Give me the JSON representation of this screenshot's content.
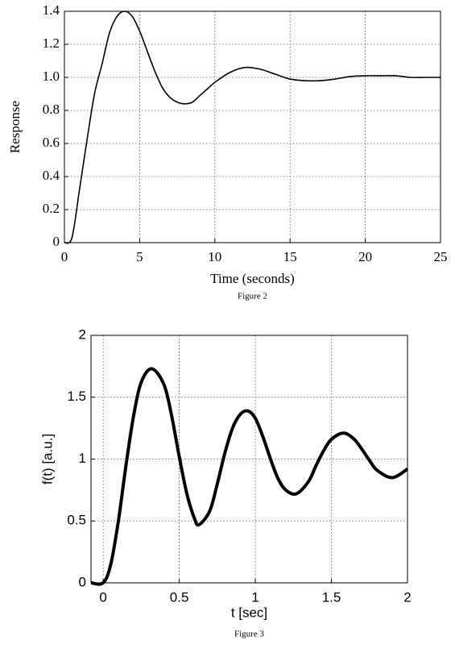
{
  "chart_data": [
    {
      "type": "line",
      "xlabel": "Time (seconds)",
      "ylabel": "Response",
      "caption": "Figure 2",
      "x": [
        0,
        0.5,
        1,
        1.5,
        2,
        2.5,
        3,
        3.5,
        4,
        4.5,
        5,
        5.5,
        6,
        6.5,
        7,
        7.5,
        8,
        8.5,
        9,
        9.5,
        10,
        11,
        12,
        13,
        14,
        15,
        16,
        17,
        18,
        19,
        20,
        21,
        22,
        23,
        24,
        25
      ],
      "series": [
        {
          "color": "#000000",
          "values": [
            0,
            0.03,
            0.32,
            0.62,
            0.9,
            1.08,
            1.27,
            1.37,
            1.4,
            1.37,
            1.28,
            1.16,
            1.04,
            0.94,
            0.88,
            0.85,
            0.84,
            0.85,
            0.89,
            0.93,
            0.97,
            1.03,
            1.06,
            1.05,
            1.02,
            0.99,
            0.98,
            0.98,
            0.99,
            1.005,
            1.01,
            1.01,
            1.01,
            1.0,
            1.0,
            1.0
          ]
        }
      ],
      "xlim": [
        0,
        25
      ],
      "ylim": [
        0,
        1.4
      ],
      "xticks": [
        0,
        5,
        10,
        15,
        20,
        25
      ],
      "yticks": [
        0,
        {
          "value": 0.2,
          "label": "0.2"
        },
        {
          "value": 0.4,
          "label": "0.4"
        },
        {
          "value": 0.6,
          "label": "0.6"
        },
        {
          "value": 0.8,
          "label": "0.8"
        },
        {
          "value": 1.0,
          "label": "1.0"
        },
        {
          "value": 1.2,
          "label": "1.2"
        },
        {
          "value": 1.4,
          "label": "1.4"
        }
      ],
      "grid": true
    },
    {
      "type": "line",
      "xlabel": "t [sec]",
      "ylabel": "f(t) [a.u.]",
      "caption": "Figure 3",
      "x": [
        -0.08,
        0,
        0.05,
        0.1,
        0.15,
        0.2,
        0.25,
        0.32,
        0.4,
        0.45,
        0.5,
        0.55,
        0.6,
        0.63,
        0.7,
        0.75,
        0.8,
        0.85,
        0.9,
        0.95,
        1.0,
        1.05,
        1.1,
        1.15,
        1.2,
        1.27,
        1.35,
        1.4,
        1.45,
        1.5,
        1.58,
        1.65,
        1.7,
        1.75,
        1.8,
        1.9,
        2.0
      ],
      "series": [
        {
          "color": "#000000",
          "values": [
            0,
            0,
            0.15,
            0.5,
            0.95,
            1.35,
            1.62,
            1.73,
            1.6,
            1.35,
            1.02,
            0.72,
            0.52,
            0.47,
            0.58,
            0.8,
            1.05,
            1.25,
            1.36,
            1.39,
            1.33,
            1.18,
            1.0,
            0.84,
            0.75,
            0.72,
            0.82,
            0.95,
            1.07,
            1.16,
            1.21,
            1.16,
            1.08,
            0.99,
            0.91,
            0.85,
            0.92
          ]
        }
      ],
      "xlim": [
        -0.08,
        2
      ],
      "ylim": [
        0,
        2
      ],
      "xticks": [
        0,
        0.5,
        1,
        1.5,
        2
      ],
      "yticks": [
        0,
        0.5,
        1,
        1.5,
        2
      ],
      "grid": true
    }
  ]
}
